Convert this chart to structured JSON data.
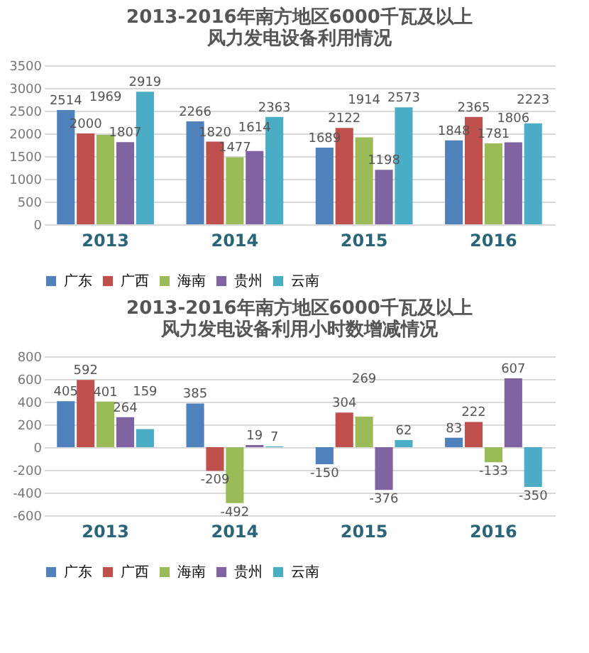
{
  "chart_data": [
    {
      "type": "bar",
      "title": "2013-2016年南方地区6000千瓦及以上风力发电设备利用情况",
      "categories": [
        "2013",
        "2014",
        "2015",
        "2016"
      ],
      "ylim": [
        0,
        3500
      ],
      "yticks": [
        0,
        500,
        1000,
        1500,
        2000,
        2500,
        3000,
        3500
      ],
      "grid": "y",
      "legend": "bottom",
      "data_labels": true,
      "series": [
        {
          "name": "广东",
          "color": "#4f81bd",
          "values": [
            2514,
            2266,
            1689,
            1848
          ]
        },
        {
          "name": "广西",
          "color": "#c0504d",
          "values": [
            2000,
            1820,
            2122,
            2365
          ]
        },
        {
          "name": "海南",
          "color": "#9bbb59",
          "values": [
            1969,
            1477,
            1914,
            1781
          ]
        },
        {
          "name": "贵州",
          "color": "#8064a2",
          "values": [
            1807,
            1614,
            1198,
            1806
          ]
        },
        {
          "name": "云南",
          "color": "#4bacc6",
          "values": [
            2919,
            2363,
            2573,
            2223
          ]
        }
      ]
    },
    {
      "type": "bar",
      "title": "2013-2016年南方地区6000千瓦及以上风力发电设备利用小时数增减情况",
      "categories": [
        "2013",
        "2014",
        "2015",
        "2016"
      ],
      "ylim": [
        -600,
        800
      ],
      "yticks": [
        -600,
        -400,
        -200,
        0,
        200,
        400,
        600,
        800
      ],
      "grid": "y",
      "legend": "bottom",
      "data_labels": true,
      "series": [
        {
          "name": "广东",
          "color": "#4f81bd",
          "values": [
            405,
            385,
            -150,
            83
          ]
        },
        {
          "name": "广西",
          "color": "#c0504d",
          "values": [
            592,
            -209,
            304,
            222
          ]
        },
        {
          "name": "海南",
          "color": "#9bbb59",
          "values": [
            401,
            -492,
            269,
            -133
          ]
        },
        {
          "name": "贵州",
          "color": "#8064a2",
          "values": [
            264,
            19,
            -376,
            607
          ]
        },
        {
          "name": "云南",
          "color": "#4bacc6",
          "values": [
            159,
            7,
            62,
            -350
          ]
        }
      ]
    }
  ]
}
